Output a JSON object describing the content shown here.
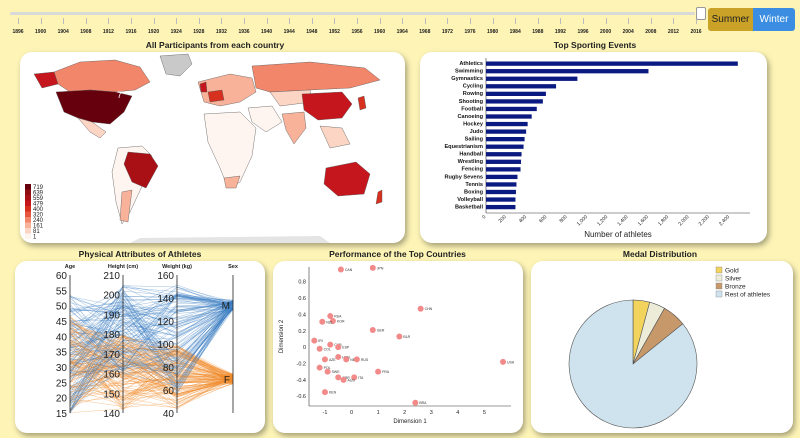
{
  "timeline": {
    "years": [
      "1896",
      "1900",
      "1904",
      "1908",
      "1912",
      "1916",
      "1920",
      "1924",
      "1928",
      "1932",
      "1936",
      "1940",
      "1944",
      "1948",
      "1952",
      "1956",
      "1960",
      "1964",
      "1968",
      "1972",
      "1976",
      "1980",
      "1984",
      "1988",
      "1992",
      "1996",
      "2000",
      "2004",
      "2008",
      "2012",
      "2016"
    ],
    "selected": "2016"
  },
  "season_buttons": {
    "summer": "Summer",
    "winter": "Winter"
  },
  "titles": {
    "map": "All Participants from each country",
    "events": "Top Sporting Events",
    "physical": "Physical Attributes of Athletes",
    "performance": "Performance of the Top Countries",
    "medals": "Medal Distribution"
  },
  "map": {
    "legend": [
      "719",
      "639",
      "559",
      "479",
      "400",
      "320",
      "240",
      "161",
      "81",
      "1"
    ],
    "legend_colors": [
      "#67000d",
      "#8e0d12",
      "#a91016",
      "#c4161c",
      "#d7301f",
      "#e65540",
      "#f2866a",
      "#f9b29a",
      "#fdd5c4",
      "#fff5f0"
    ],
    "label": "7"
  },
  "chart_data": [
    {
      "type": "bar",
      "orientation": "horizontal",
      "title": "Top Sporting Events",
      "categories": [
        "Athletics",
        "Swimming",
        "Gymnastics",
        "Cycling",
        "Rowing",
        "Shooting",
        "Football",
        "Canoeing",
        "Hockey",
        "Judo",
        "Sailing",
        "Equestrianism",
        "Handball",
        "Wrestling",
        "Fencing",
        "Rugby Sevens",
        "Tennis",
        "Boxing",
        "Volleyball",
        "Basketball"
      ],
      "values": [
        2480,
        1600,
        900,
        690,
        590,
        560,
        500,
        450,
        410,
        395,
        380,
        370,
        350,
        345,
        340,
        310,
        300,
        295,
        290,
        290
      ],
      "xlabel": "Number of athletes",
      "xticks": [
        "0",
        "200",
        "400",
        "600",
        "800",
        "1,000",
        "1,200",
        "1,400",
        "1,600",
        "1,800",
        "2,000",
        "2,200",
        "2,400"
      ],
      "xlim": [
        0,
        2600
      ],
      "color": "#0b1a80"
    },
    {
      "type": "parallel",
      "title": "Physical Attributes of Athletes",
      "axes": [
        {
          "name": "Age",
          "ticks": [
            "60",
            "55",
            "50",
            "45",
            "40",
            "35",
            "30",
            "25",
            "20",
            "15"
          ]
        },
        {
          "name": "Height (cm)",
          "ticks": [
            "210",
            "200",
            "190",
            "180",
            "170",
            "160",
            "150",
            "140"
          ]
        },
        {
          "name": "Weight (kg)",
          "ticks": [
            "160",
            "140",
            "120",
            "100",
            "80",
            "60",
            "40"
          ]
        },
        {
          "name": "Sex",
          "ticks": [
            "M",
            "F"
          ]
        }
      ],
      "colors": {
        "M": "#3a7cc2",
        "F": "#f08a2a"
      }
    },
    {
      "type": "scatter",
      "title": "Performance of the Top Countries",
      "xlabel": "Dimension 1",
      "ylabel": "Dimension 2",
      "xticks": [
        "-1",
        "0",
        "1",
        "2",
        "3",
        "4",
        "5"
      ],
      "yticks": [
        "0.8",
        "0.6",
        "0.4",
        "0.2",
        "0",
        "-0.2",
        "-0.4",
        "-0.6"
      ],
      "xlim": [
        -1.6,
        6.0
      ],
      "ylim": [
        -0.72,
        0.98
      ],
      "points": [
        {
          "label": "CAN",
          "x": -0.4,
          "y": 0.95
        },
        {
          "label": "JPN",
          "x": 0.8,
          "y": 0.97
        },
        {
          "label": "CHN",
          "x": 2.6,
          "y": 0.47
        },
        {
          "label": "RSA",
          "x": -0.8,
          "y": 0.38
        },
        {
          "label": "KOR",
          "x": -0.7,
          "y": 0.32
        },
        {
          "label": "NZL",
          "x": -1.1,
          "y": 0.31
        },
        {
          "label": "GER",
          "x": 0.8,
          "y": 0.21
        },
        {
          "label": "BLR",
          "x": 1.8,
          "y": 0.13
        },
        {
          "label": "IRI",
          "x": -1.4,
          "y": 0.08
        },
        {
          "label": "CUB",
          "x": -0.8,
          "y": 0.03
        },
        {
          "label": "ESP",
          "x": -0.5,
          "y": 0.0
        },
        {
          "label": "COL",
          "x": -1.2,
          "y": -0.02
        },
        {
          "label": "USA",
          "x": 5.7,
          "y": -0.18
        },
        {
          "label": "HUN",
          "x": -0.5,
          "y": -0.12
        },
        {
          "label": "NED",
          "x": -0.2,
          "y": -0.15
        },
        {
          "label": "RUS",
          "x": 0.2,
          "y": -0.15
        },
        {
          "label": "AZE",
          "x": -1.0,
          "y": -0.15
        },
        {
          "label": "POL",
          "x": -1.2,
          "y": -0.25
        },
        {
          "label": "FRA",
          "x": 1.0,
          "y": -0.3
        },
        {
          "label": "SWE",
          "x": -0.9,
          "y": -0.3
        },
        {
          "label": "GBR",
          "x": -0.5,
          "y": -0.37
        },
        {
          "label": "ITA",
          "x": 0.1,
          "y": -0.37
        },
        {
          "label": "AUS",
          "x": -0.3,
          "y": -0.4
        },
        {
          "label": "KEN",
          "x": -1.0,
          "y": -0.55
        },
        {
          "label": "BRA",
          "x": 2.4,
          "y": -0.68
        }
      ],
      "color": "#f28a8a"
    },
    {
      "type": "pie",
      "title": "Medal Distribution",
      "categories": [
        "Gold",
        "Silver",
        "Bronze",
        "Rest of athletes"
      ],
      "values": [
        4.2,
        4.0,
        6.0,
        85.8
      ],
      "colors": [
        "#f2d45c",
        "#ececd8",
        "#c7996a",
        "#cfe3ee"
      ]
    }
  ]
}
